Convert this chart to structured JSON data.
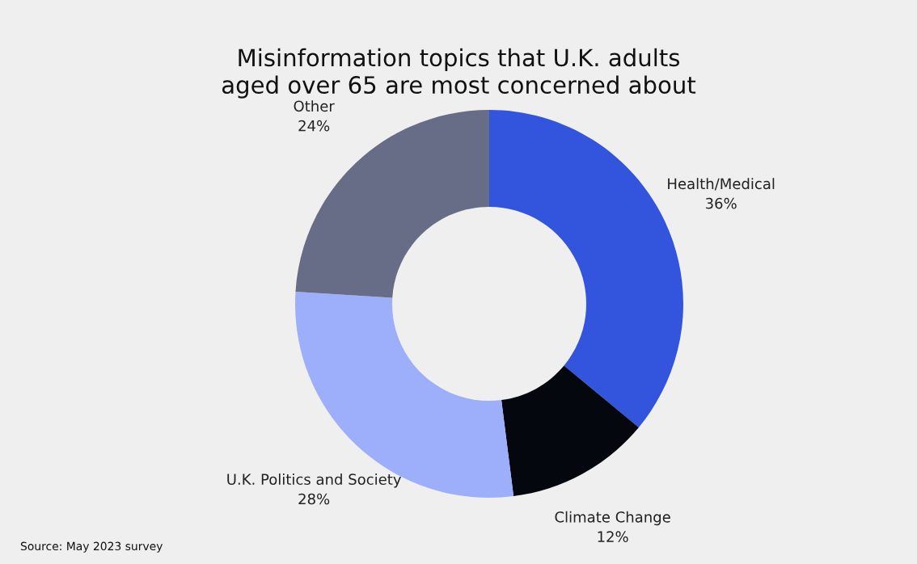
{
  "chart_data": {
    "type": "donut",
    "title": "Misinformation topics that U.K. adults\naged over 65 are most concerned about",
    "categories": [
      "Health/Medical",
      "Climate Change",
      "U.K. Politics and Society",
      "Other"
    ],
    "values": [
      36,
      12,
      28,
      24
    ],
    "value_labels": [
      "36%",
      "12%",
      "28%",
      "24%"
    ],
    "colors": [
      "#3355dd",
      "#05070f",
      "#9daefa",
      "#676d87"
    ],
    "annotations": [
      "Source: May 2023 survey"
    ]
  }
}
